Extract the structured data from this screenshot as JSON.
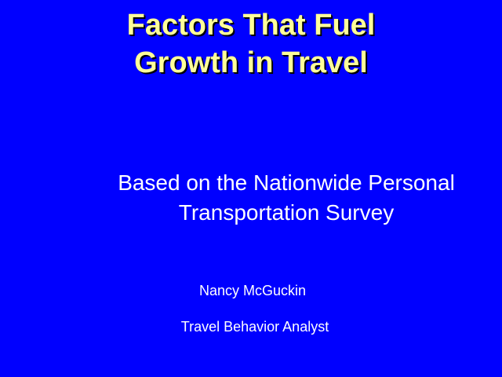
{
  "slide": {
    "title_lines": [
      "Factors That Fuel",
      "Growth in Travel"
    ],
    "subtitle_lines": [
      "Based on the Nationwide Personal",
      "Transportation Survey"
    ],
    "author": "Nancy McGuckin",
    "role": "Travel Behavior Analyst"
  },
  "colors": {
    "background": "#0000FF",
    "title_text": "#FFFF99",
    "body_text": "#FFFFFF"
  }
}
